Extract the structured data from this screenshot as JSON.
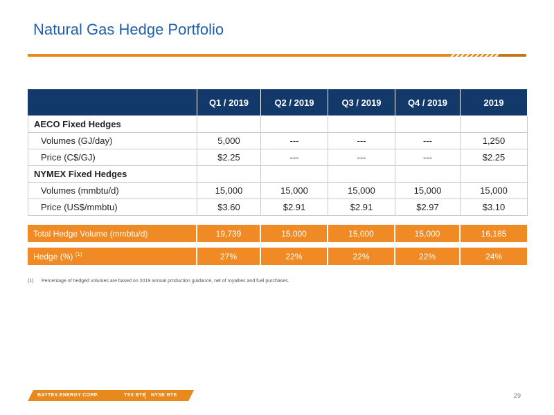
{
  "title": "Natural Gas Hedge Portfolio",
  "colors": {
    "title": "#1f5fa8",
    "accent": "#e8891e",
    "header_bg": "#13396b",
    "summary_bg": "#f08a24"
  },
  "table": {
    "columns": [
      "Q1 / 2019",
      "Q2 / 2019",
      "Q3 / 2019",
      "Q4 / 2019",
      "2019"
    ],
    "sections": [
      {
        "label": "AECO Fixed Hedges",
        "rows": [
          {
            "label": "Volumes (GJ/day)",
            "values": [
              "5,000",
              "---",
              "---",
              "---",
              "1,250"
            ]
          },
          {
            "label": "Price (C$/GJ)",
            "values": [
              "$2.25",
              "---",
              "---",
              "---",
              "$2.25"
            ]
          }
        ]
      },
      {
        "label": "NYMEX Fixed Hedges",
        "rows": [
          {
            "label": "Volumes (mmbtu/d)",
            "values": [
              "15,000",
              "15,000",
              "15,000",
              "15,000",
              "15,000"
            ]
          },
          {
            "label": "Price (US$/mmbtu)",
            "values": [
              "$3.60",
              "$2.91",
              "$2.91",
              "$2.97",
              "$3.10"
            ]
          }
        ]
      }
    ]
  },
  "summary": {
    "total": {
      "label": "Total Hedge Volume (mmbtu/d)",
      "values": [
        "19,739",
        "15,000",
        "15,000",
        "15,000",
        "16,185"
      ]
    },
    "hedge": {
      "label": "Hedge (%)",
      "note_ref": "(1)",
      "values": [
        "27%",
        "22%",
        "22%",
        "22%",
        "24%"
      ]
    }
  },
  "footnote": {
    "marker": "(1)",
    "text": "Percentage of hedged volumes are based on 2019 annual production guidance, net of royalties and fuel purchases."
  },
  "logo": {
    "company": "BAYTEX ENERGY CORP.",
    "tsx": "TSX BTE",
    "nyse": "NYSE BTE"
  },
  "page_number": "29"
}
